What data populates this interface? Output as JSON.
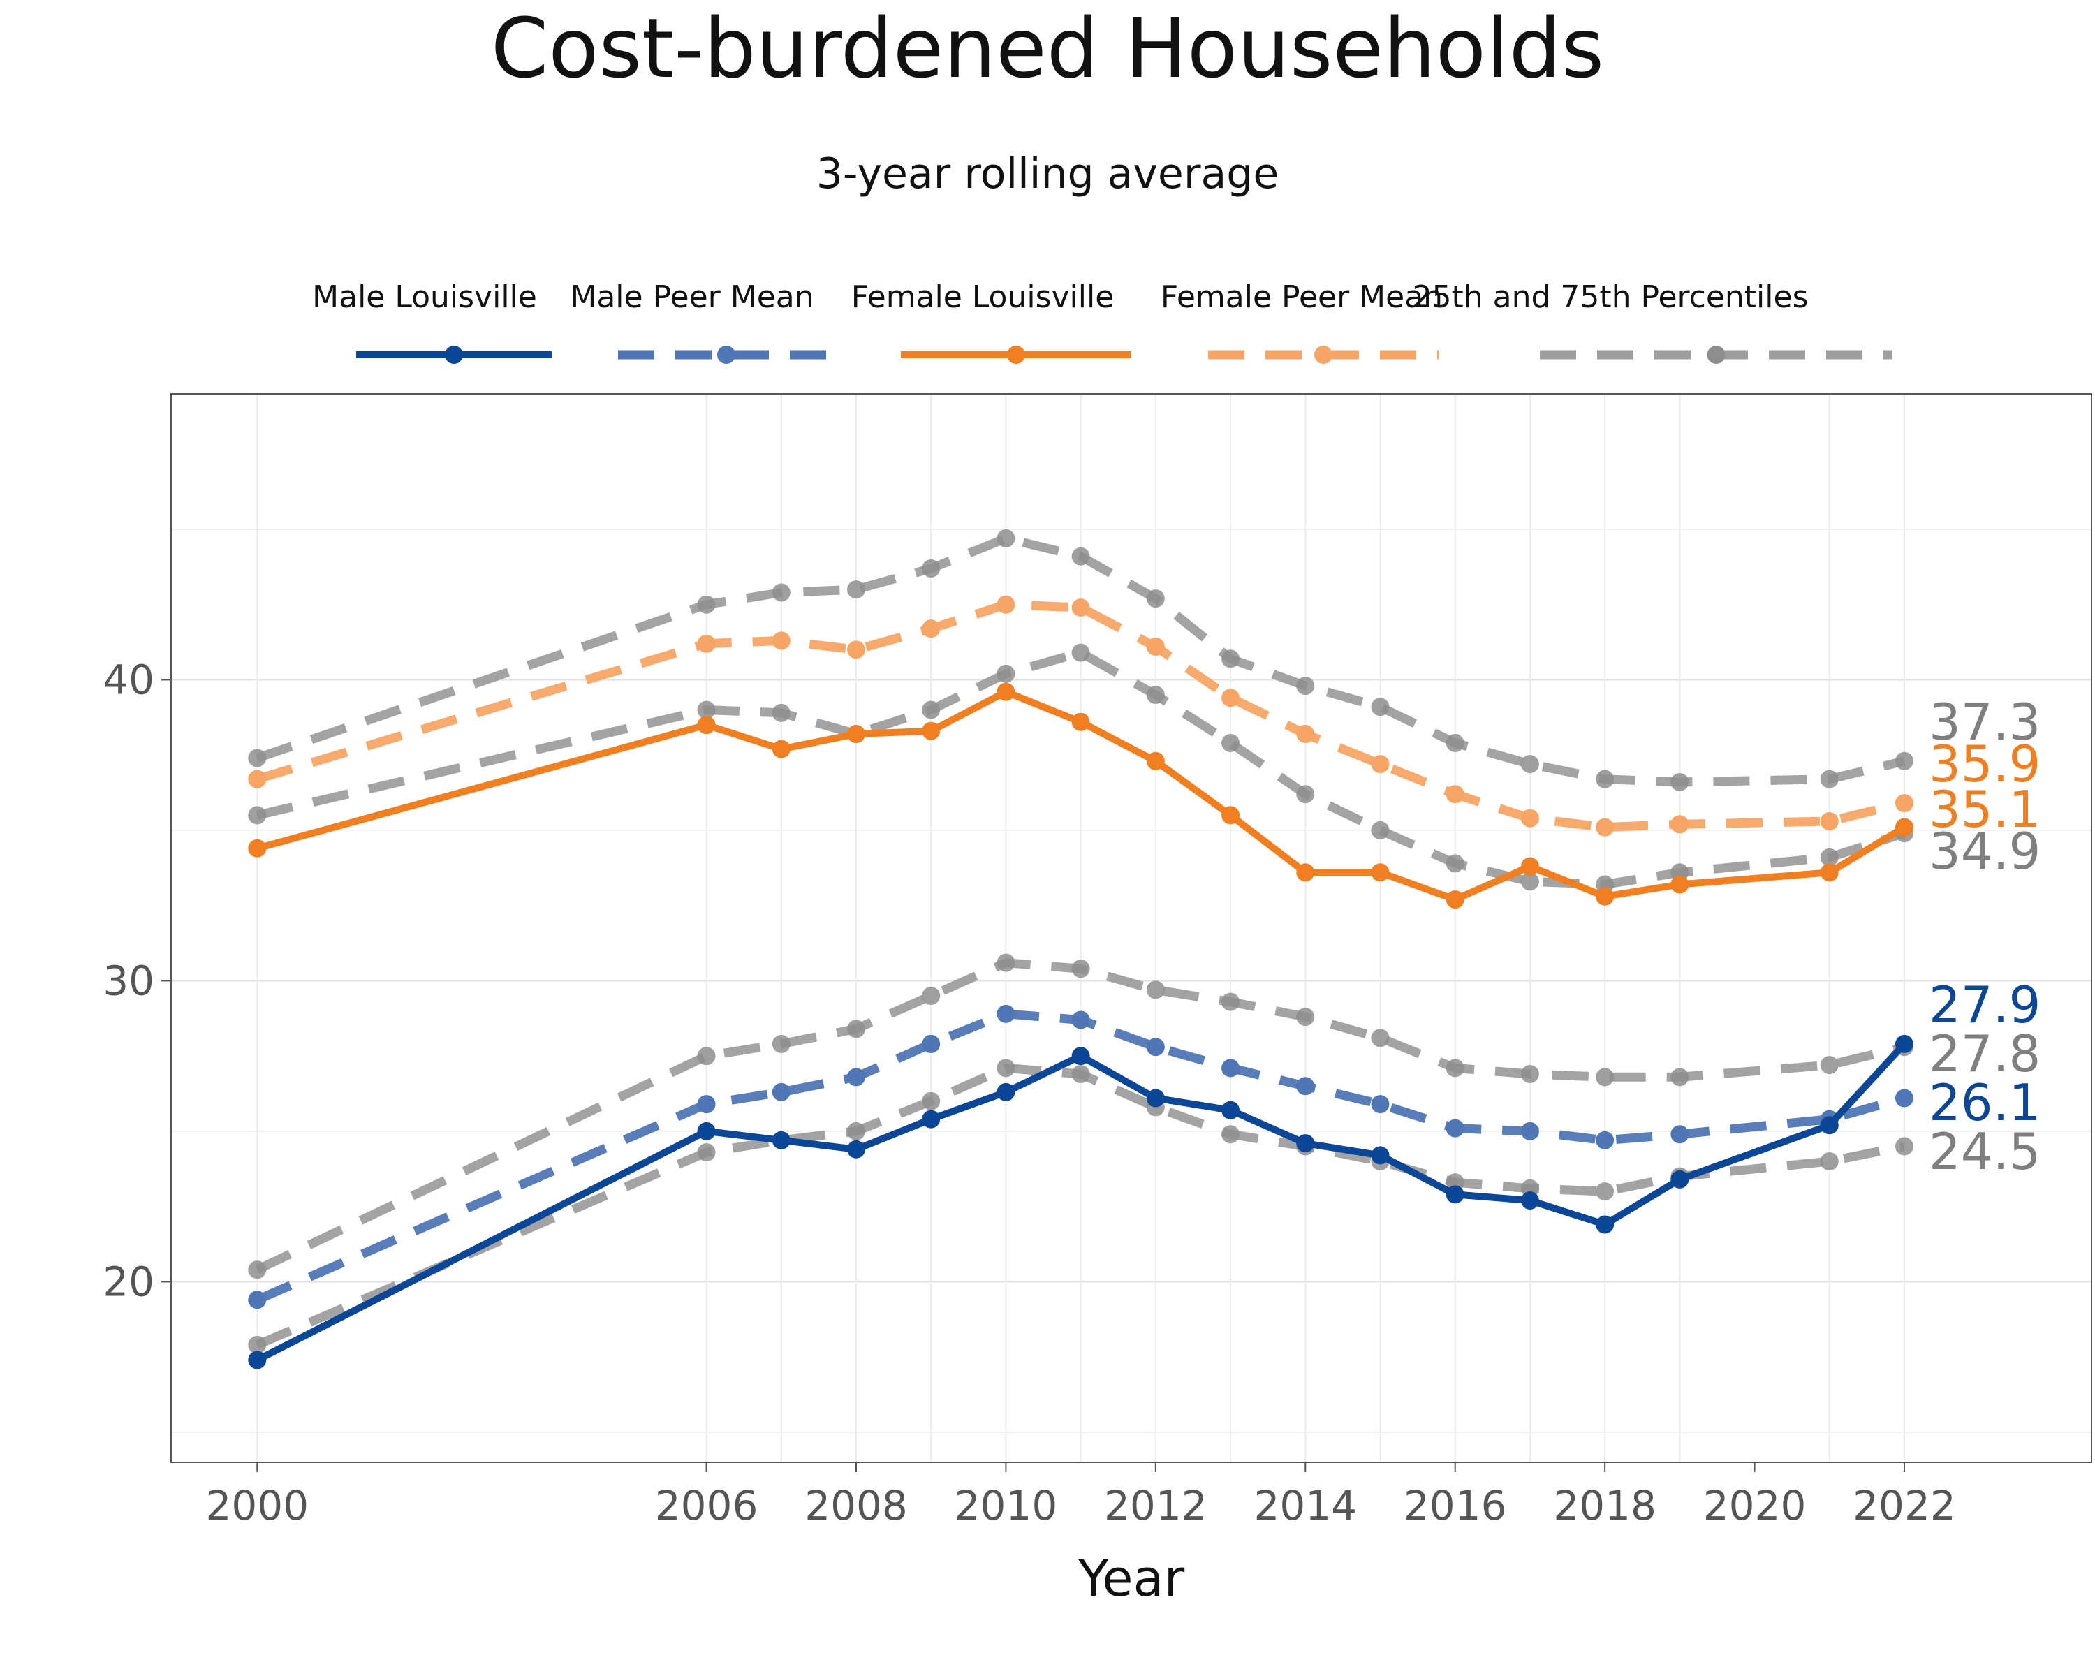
{
  "chart_data": {
    "type": "line",
    "title": "Cost-burdened Households",
    "subtitle": "3-year rolling average",
    "xlabel": "Year",
    "ylabel": "",
    "xlim": [
      1998.85,
      2024.5
    ],
    "ylim": [
      14.0,
      49.5
    ],
    "x_ticks": [
      2000,
      2006,
      2008,
      2010,
      2012,
      2014,
      2016,
      2018,
      2020,
      2022
    ],
    "y_ticks": [
      20,
      30,
      40
    ],
    "grid": true,
    "legend_position": "top",
    "legend": [
      {
        "name": "Male Louisville",
        "color": "#0b4697",
        "style": "solid"
      },
      {
        "name": "Male Peer Mean",
        "color": "#4f76b5",
        "style": "dashed"
      },
      {
        "name": "Female Louisville",
        "color": "#f07f22",
        "style": "solid"
      },
      {
        "name": "Female Peer Mean",
        "color": "#f6a565",
        "style": "dashed"
      },
      {
        "name": "25th and 75th Percentiles",
        "color": "#9e9e9e",
        "style": "dashed"
      }
    ],
    "x": [
      2000,
      2006,
      2007,
      2008,
      2009,
      2010,
      2011,
      2012,
      2013,
      2014,
      2015,
      2016,
      2017,
      2018,
      2019,
      2021,
      2022
    ],
    "series": [
      {
        "name": "Female 75th Percentile",
        "group": "pct",
        "color": "#9e9e9e",
        "style": "dashed",
        "values": [
          37.4,
          42.5,
          42.9,
          43.0,
          43.7,
          44.7,
          44.1,
          42.7,
          40.7,
          39.8,
          39.1,
          37.9,
          37.2,
          36.7,
          36.6,
          36.7,
          37.3
        ]
      },
      {
        "name": "Female 25th Percentile",
        "group": "pct",
        "color": "#9e9e9e",
        "style": "dashed",
        "values": [
          35.5,
          39.0,
          38.9,
          38.2,
          39.0,
          40.2,
          40.9,
          39.5,
          37.9,
          36.2,
          35.0,
          33.9,
          33.3,
          33.2,
          33.6,
          34.1,
          34.9
        ]
      },
      {
        "name": "Male 75th Percentile",
        "group": "pct",
        "color": "#9e9e9e",
        "style": "dashed",
        "values": [
          20.4,
          27.5,
          27.9,
          28.4,
          29.5,
          30.6,
          30.4,
          29.7,
          29.3,
          28.8,
          28.1,
          27.1,
          26.9,
          26.8,
          26.8,
          27.2,
          27.8
        ]
      },
      {
        "name": "Male 25th Percentile",
        "group": "pct",
        "color": "#9e9e9e",
        "style": "dashed",
        "values": [
          17.9,
          24.3,
          24.7,
          25.0,
          26.0,
          27.1,
          26.9,
          25.8,
          24.9,
          24.5,
          24.0,
          23.3,
          23.1,
          23.0,
          23.5,
          24.0,
          24.5
        ]
      },
      {
        "name": "Female Peer Mean",
        "group": "peer",
        "color": "#f6a565",
        "style": "dashed",
        "values": [
          36.7,
          41.2,
          41.3,
          41.0,
          41.7,
          42.5,
          42.4,
          41.1,
          39.4,
          38.2,
          37.2,
          36.2,
          35.4,
          35.1,
          35.2,
          35.3,
          35.9
        ]
      },
      {
        "name": "Male Peer Mean",
        "group": "peer",
        "color": "#4f76b5",
        "style": "dashed",
        "values": [
          19.4,
          25.9,
          26.3,
          26.8,
          27.9,
          28.9,
          28.7,
          27.8,
          27.1,
          26.5,
          25.9,
          25.1,
          25.0,
          24.7,
          24.9,
          25.4,
          26.1
        ]
      },
      {
        "name": "Female Louisville",
        "group": "main",
        "color": "#f07f22",
        "style": "solid",
        "values": [
          34.4,
          38.5,
          37.7,
          38.2,
          38.3,
          39.6,
          38.6,
          37.3,
          35.5,
          33.6,
          33.6,
          32.7,
          33.8,
          32.8,
          33.2,
          33.6,
          35.1
        ]
      },
      {
        "name": "Male Louisville",
        "group": "main",
        "color": "#0b4697",
        "style": "solid",
        "values": [
          17.4,
          25.0,
          24.7,
          24.4,
          25.4,
          26.3,
          27.5,
          26.1,
          25.7,
          24.6,
          24.2,
          22.9,
          22.7,
          21.9,
          23.4,
          25.2,
          27.9
        ]
      }
    ],
    "end_labels": [
      {
        "text": "37.3",
        "value": 37.3,
        "color": "#7f7f7f"
      },
      {
        "text": "35.9",
        "value": 35.9,
        "color": "#f07f22"
      },
      {
        "text": "35.1",
        "value": 35.1,
        "color": "#f07f22"
      },
      {
        "text": "34.9",
        "value": 34.9,
        "color": "#7f7f7f"
      },
      {
        "text": "27.9",
        "value": 27.9,
        "color": "#0b4697"
      },
      {
        "text": "27.8",
        "value": 27.8,
        "color": "#7f7f7f"
      },
      {
        "text": "26.1",
        "value": 26.1,
        "color": "#0b4697"
      },
      {
        "text": "24.5",
        "value": 24.5,
        "color": "#7f7f7f"
      }
    ]
  }
}
